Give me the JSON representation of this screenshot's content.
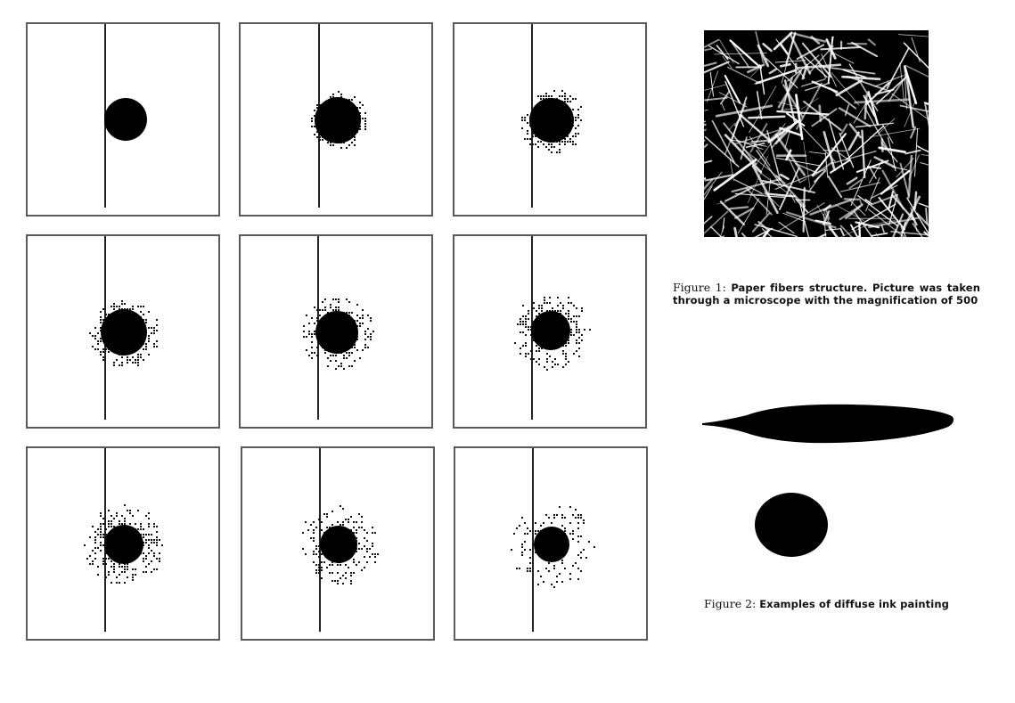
{
  "figure_grid": {
    "description_rows": 3,
    "description_cols": 3,
    "panels": [
      {
        "id": 1,
        "inner_r": 24,
        "halo_r": 24,
        "halo_opacity": 0.0
      },
      {
        "id": 2,
        "inner_r": 26,
        "halo_r": 33,
        "halo_opacity": 0.55
      },
      {
        "id": 3,
        "inner_r": 25,
        "halo_r": 37,
        "halo_opacity": 0.5
      },
      {
        "id": 4,
        "inner_r": 26,
        "halo_r": 39,
        "halo_opacity": 0.5
      },
      {
        "id": 5,
        "inner_r": 24,
        "halo_r": 41,
        "halo_opacity": 0.45
      },
      {
        "id": 6,
        "inner_r": 22,
        "halo_r": 44,
        "halo_opacity": 0.42
      },
      {
        "id": 7,
        "inner_r": 22,
        "halo_r": 45,
        "halo_opacity": 0.45
      },
      {
        "id": 8,
        "inner_r": 21,
        "halo_r": 47,
        "halo_opacity": 0.32
      },
      {
        "id": 9,
        "inner_r": 20,
        "halo_r": 49,
        "halo_opacity": 0.22
      }
    ]
  },
  "figure1": {
    "label": "Figure 1:",
    "caption": "Paper fibers structure.  Picture was taken through a microscope with the magnification of 500"
  },
  "figure2": {
    "label": "Figure 2:",
    "caption": "Examples of diffuse ink painting"
  }
}
